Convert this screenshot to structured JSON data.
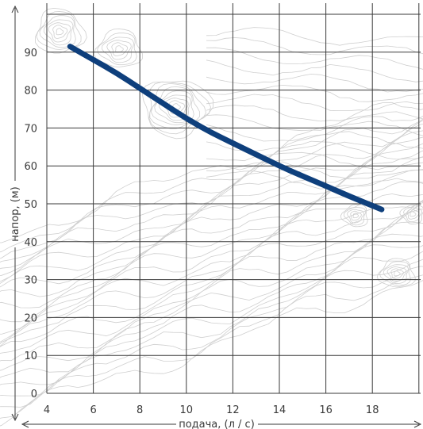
{
  "chart_data": {
    "type": "line",
    "xlabel": "подача, (л / с)",
    "ylabel": "напор, (м)",
    "xlim": [
      4,
      20
    ],
    "ylim": [
      0,
      100
    ],
    "x_ticks": [
      4,
      6,
      8,
      10,
      12,
      14,
      16,
      18
    ],
    "y_ticks": [
      0,
      10,
      20,
      30,
      40,
      50,
      60,
      70,
      80,
      90
    ],
    "grid": true,
    "colors": {
      "curve": "#0e3f7c",
      "grid": "#3a3a3a",
      "contour": "#cfcfcf"
    },
    "series": [
      {
        "x": [
          5.0,
          6.0,
          7.0,
          8.0,
          9.0,
          10.0,
          11.0,
          12.0,
          13.0,
          14.0,
          15.0,
          16.0,
          17.0,
          18.0,
          18.4
        ],
        "y": [
          91.5,
          88.0,
          84.5,
          80.5,
          76.5,
          72.5,
          69.0,
          66.0,
          63.0,
          60.0,
          57.3,
          54.7,
          52.0,
          49.5,
          48.5
        ]
      }
    ]
  }
}
